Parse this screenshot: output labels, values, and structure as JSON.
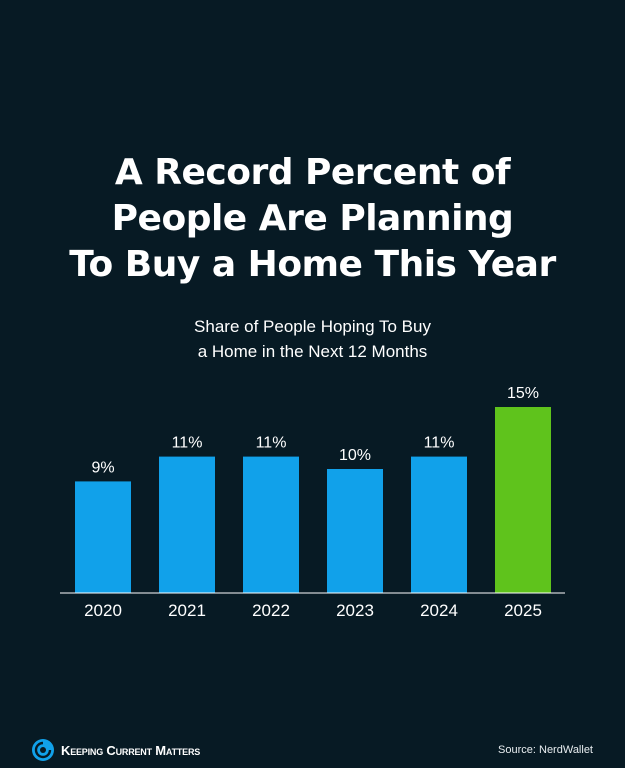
{
  "header": {
    "title_lines": [
      "A Record Percent of",
      "People Are Planning",
      "To Buy a Home This Year"
    ]
  },
  "chart_data": {
    "type": "bar",
    "title": "A Record Percent of People Are Planning To Buy a Home This Year",
    "subtitle": "Share of People Hoping To Buy a Home in the Next 12 Months",
    "subtitle_lines": [
      "Share of People Hoping To Buy",
      "a Home in the Next 12 Months"
    ],
    "categories": [
      "2020",
      "2021",
      "2022",
      "2023",
      "2024",
      "2025"
    ],
    "values": [
      9,
      11,
      11,
      10,
      11,
      15
    ],
    "value_labels": [
      "9%",
      "11%",
      "11%",
      "10%",
      "11%",
      "15%"
    ],
    "unit": "%",
    "xlabel": "",
    "ylabel": "",
    "ylim": [
      0,
      16.5
    ],
    "grid": false,
    "colors": {
      "default_bar": "#11a1ea",
      "highlight_bar": "#5fc31c",
      "highlight_index": 5
    }
  },
  "footer": {
    "brand": "Keeping Current Matters",
    "source": "Source: NerdWallet"
  },
  "colors": {
    "background": "#071a24",
    "text": "#ffffff",
    "axis": "#ffffff"
  }
}
